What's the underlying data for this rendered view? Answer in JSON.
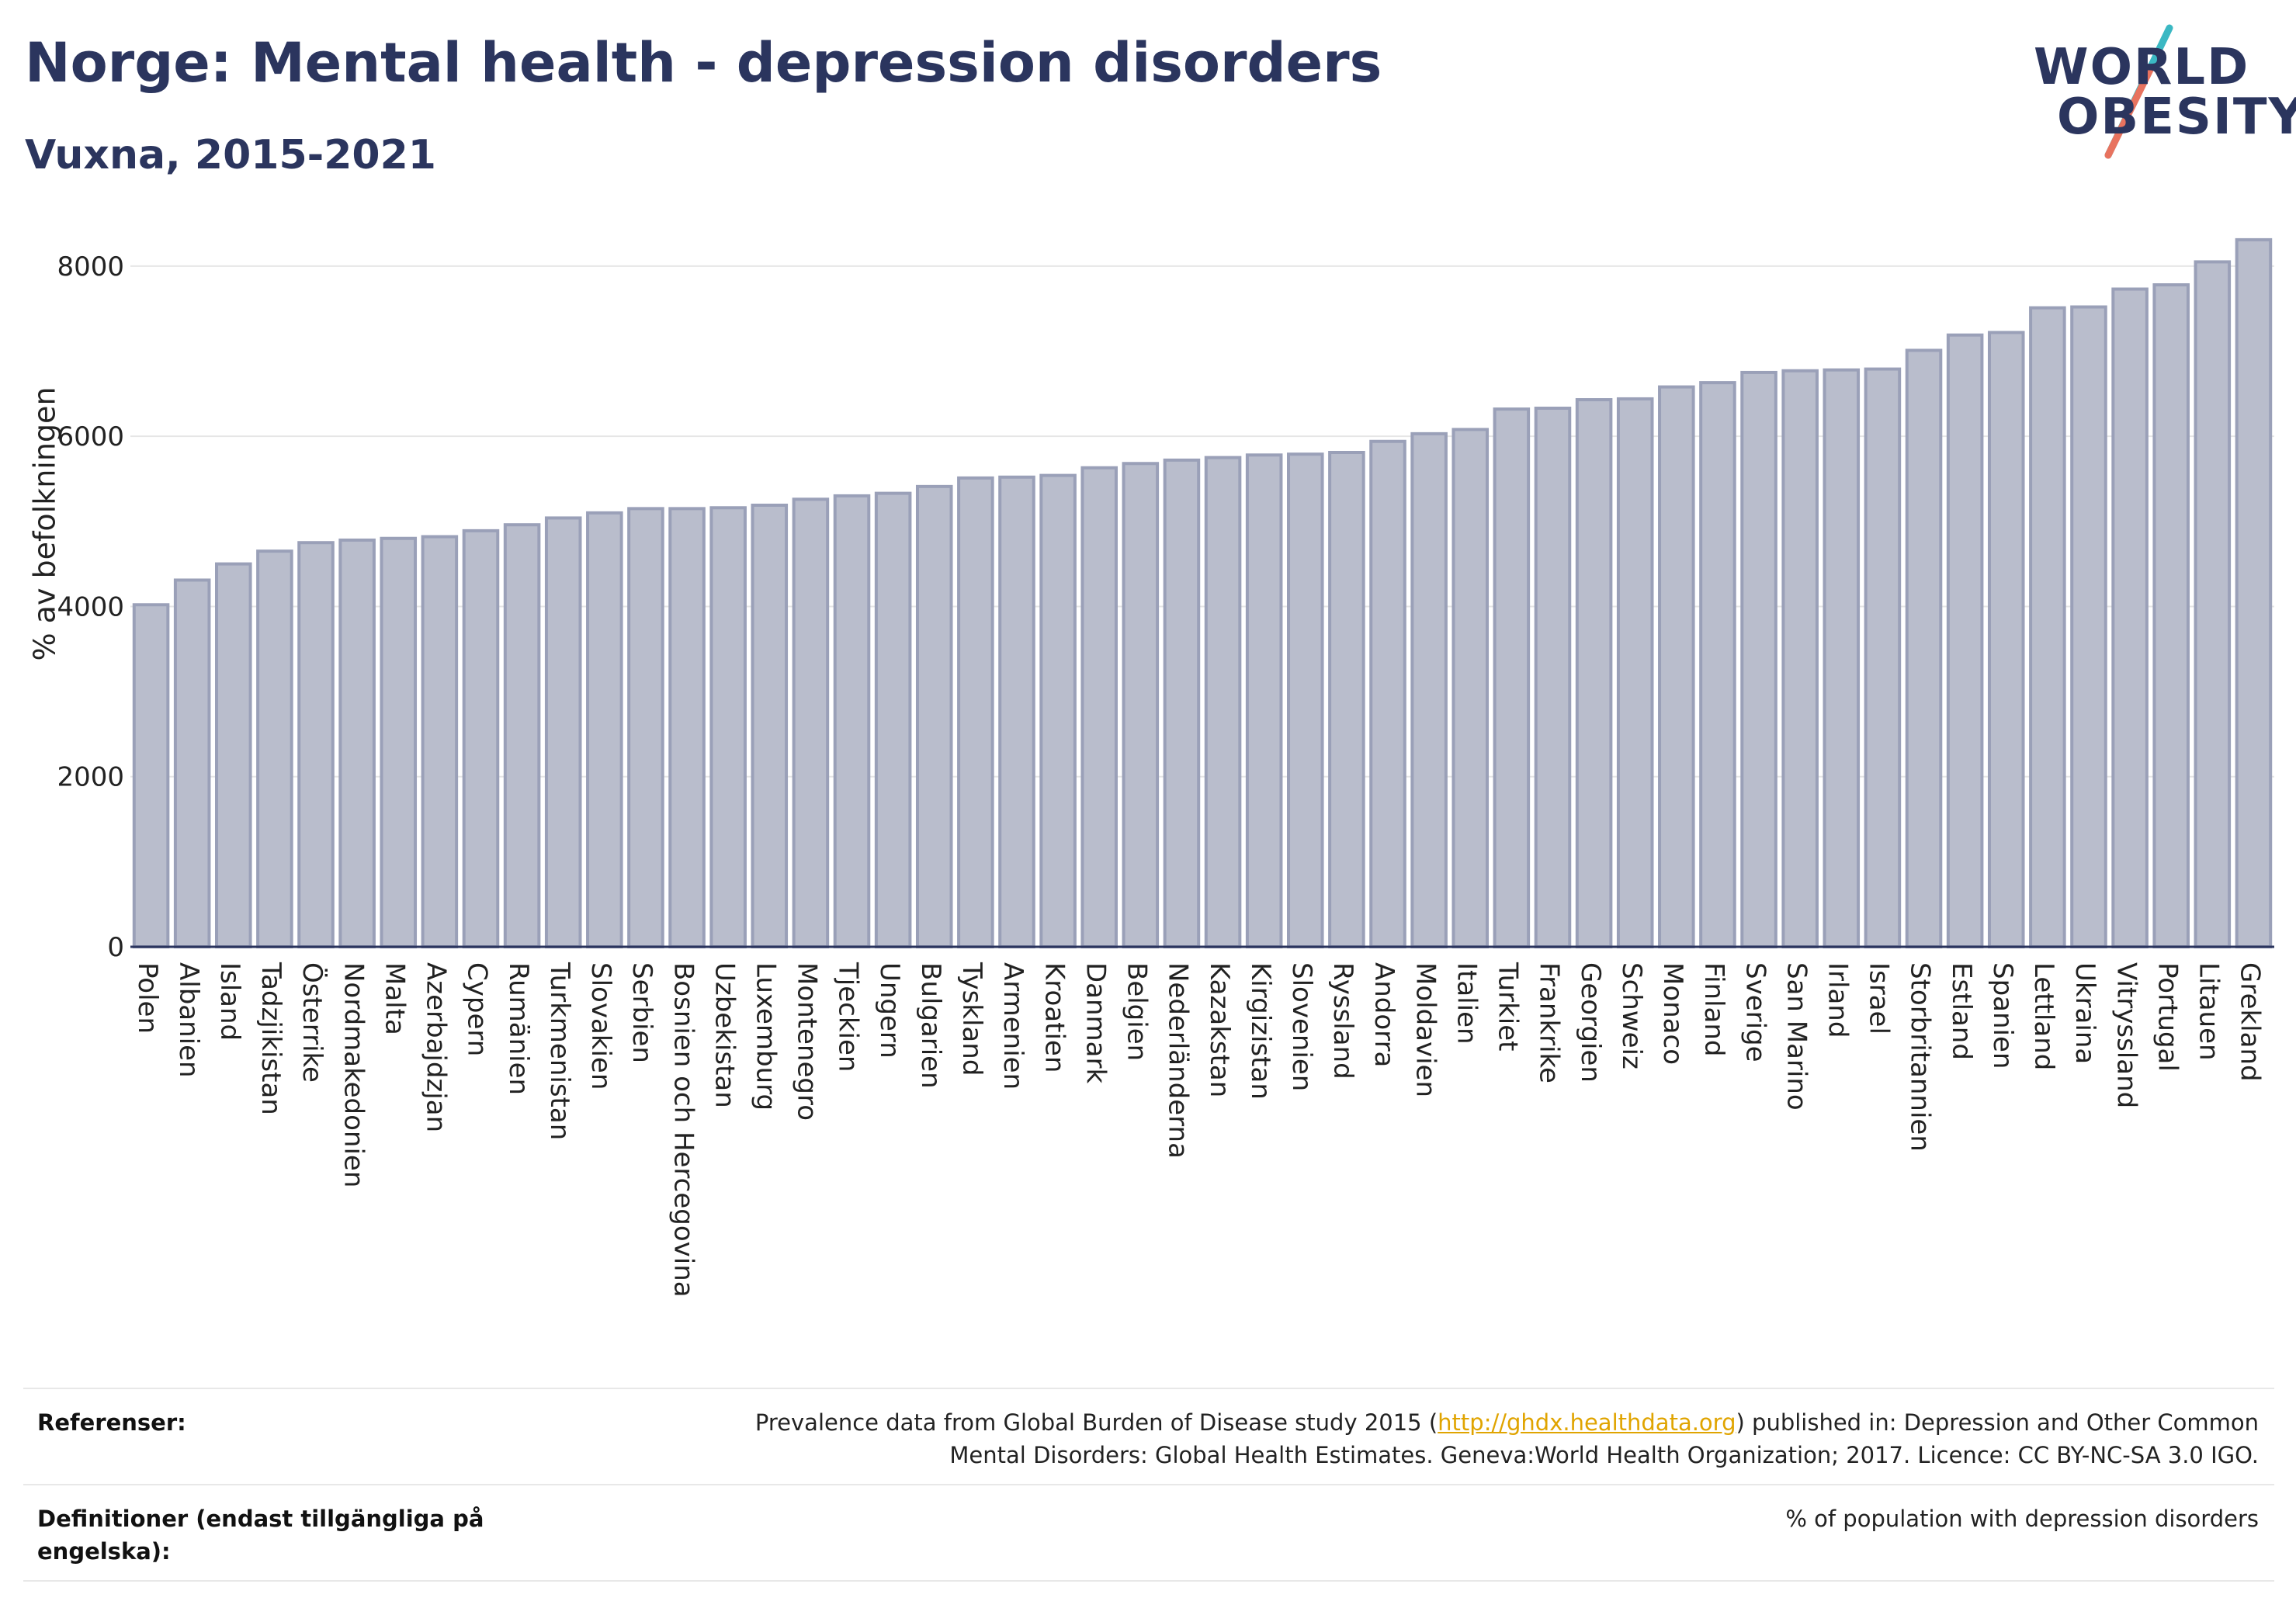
{
  "header": {
    "title": "Norge: Mental health - depression disorders",
    "subtitle": "Vuxna, 2015-2021"
  },
  "logo": {
    "line1": "WORLD",
    "line2": "OBESITY",
    "accent_teal": "#3bb8c3",
    "accent_coral": "#e8735f"
  },
  "chart_data": {
    "type": "bar",
    "ylabel": "% av befolkningen",
    "xlabel": "",
    "ylim": [
      0,
      8300
    ],
    "yticks": [
      0,
      2000,
      4000,
      6000,
      8000
    ],
    "grid": true,
    "bar_color": "#b9bdcc",
    "bar_edge_color": "#9aa0b8",
    "categories": [
      "Polen",
      "Albanien",
      "Island",
      "Tadzjikistan",
      "Österrike",
      "Nordmakedonien",
      "Malta",
      "Azerbajdzjan",
      "Cypern",
      "Rumänien",
      "Turkmenistan",
      "Slovakien",
      "Serbien",
      "Bosnien och Hercegovina",
      "Uzbekistan",
      "Luxemburg",
      "Montenegro",
      "Tjeckien",
      "Ungern",
      "Bulgarien",
      "Tyskland",
      "Armenien",
      "Kroatien",
      "Danmark",
      "Belgien",
      "Nederländerna",
      "Kazakstan",
      "Kirgizistan",
      "Slovenien",
      "Ryssland",
      "Andorra",
      "Moldavien",
      "Italien",
      "Turkiet",
      "Frankrike",
      "Georgien",
      "Schweiz",
      "Monaco",
      "Finland",
      "Sverige",
      "San Marino",
      "Irland",
      "Israel",
      "Storbritannien",
      "Estland",
      "Spanien",
      "Lettland",
      "Ukraina",
      "Vitryssland",
      "Portugal",
      "Litauen",
      "Grekland"
    ],
    "values": [
      4020,
      4310,
      4500,
      4650,
      4750,
      4780,
      4800,
      4820,
      4890,
      4960,
      5040,
      5100,
      5150,
      5150,
      5160,
      5190,
      5260,
      5300,
      5330,
      5410,
      5510,
      5520,
      5540,
      5630,
      5680,
      5720,
      5750,
      5780,
      5790,
      5810,
      5940,
      6030,
      6080,
      6320,
      6330,
      6430,
      6440,
      6580,
      6630,
      6750,
      6770,
      6780,
      6790,
      7010,
      7190,
      7220,
      7510,
      7520,
      7730,
      7780,
      8050,
      8310
    ]
  },
  "footer": {
    "references_label": "Referenser:",
    "references_pre": "Prevalence data from Global Burden of Disease study 2015 (",
    "references_link": "http://ghdx.healthdata.org",
    "references_post": ") published in: Depression and Other Common",
    "references_line2": "Mental Disorders: Global Health Estimates. Geneva:World Health Organization; 2017. Licence: CC BY-NC-SA 3.0 IGO.",
    "definitions_label_line1": "Definitioner (endast tillgängliga på",
    "definitions_label_line2": "engelska):",
    "definitions_text": "% of population with depression disorders"
  }
}
